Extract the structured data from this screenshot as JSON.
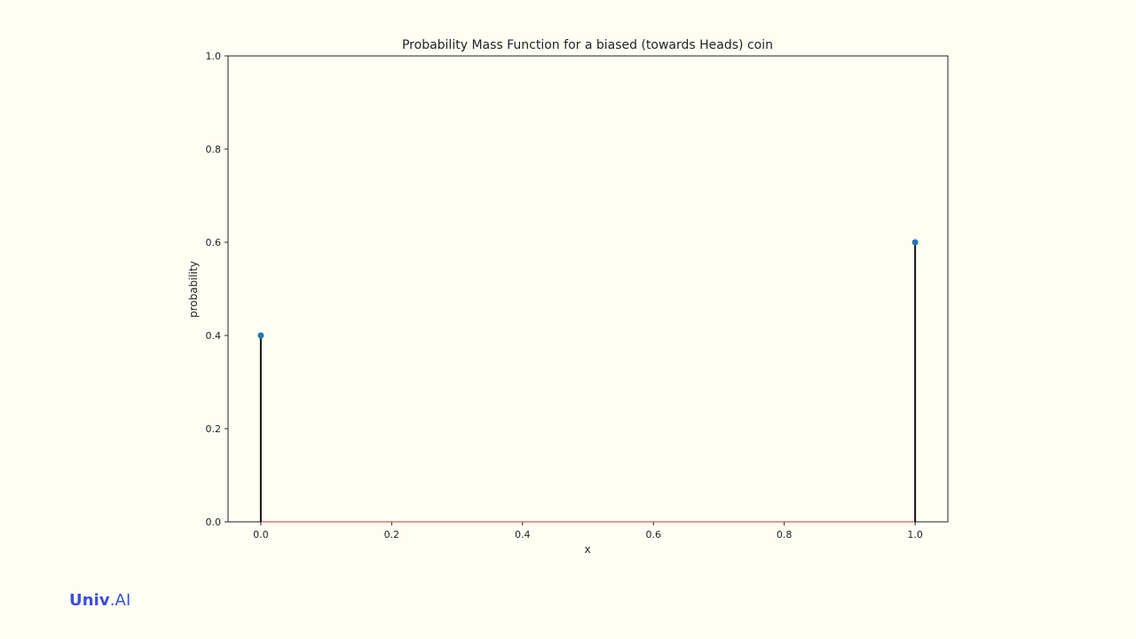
{
  "chart_data": {
    "type": "stem",
    "title": "Probability Mass Function for a biased (towards Heads) coin",
    "xlabel": "x",
    "ylabel": "probability",
    "x": [
      0.0,
      1.0
    ],
    "y": [
      0.4,
      0.6
    ],
    "xlim": [
      -0.05,
      1.05
    ],
    "ylim": [
      0.0,
      1.0
    ],
    "xticks": [
      "0.0",
      "0.2",
      "0.4",
      "0.6",
      "0.8",
      "1.0"
    ],
    "yticks": [
      "0.0",
      "0.2",
      "0.4",
      "0.6",
      "0.8",
      "1.0"
    ],
    "grid": false,
    "marker_color": "#1f77b4",
    "stem_color": "#111111"
  },
  "brand": {
    "name_bold": "Univ",
    "name_light": ".AI",
    "color": "#3a4fd6"
  },
  "background": "#fffef5"
}
